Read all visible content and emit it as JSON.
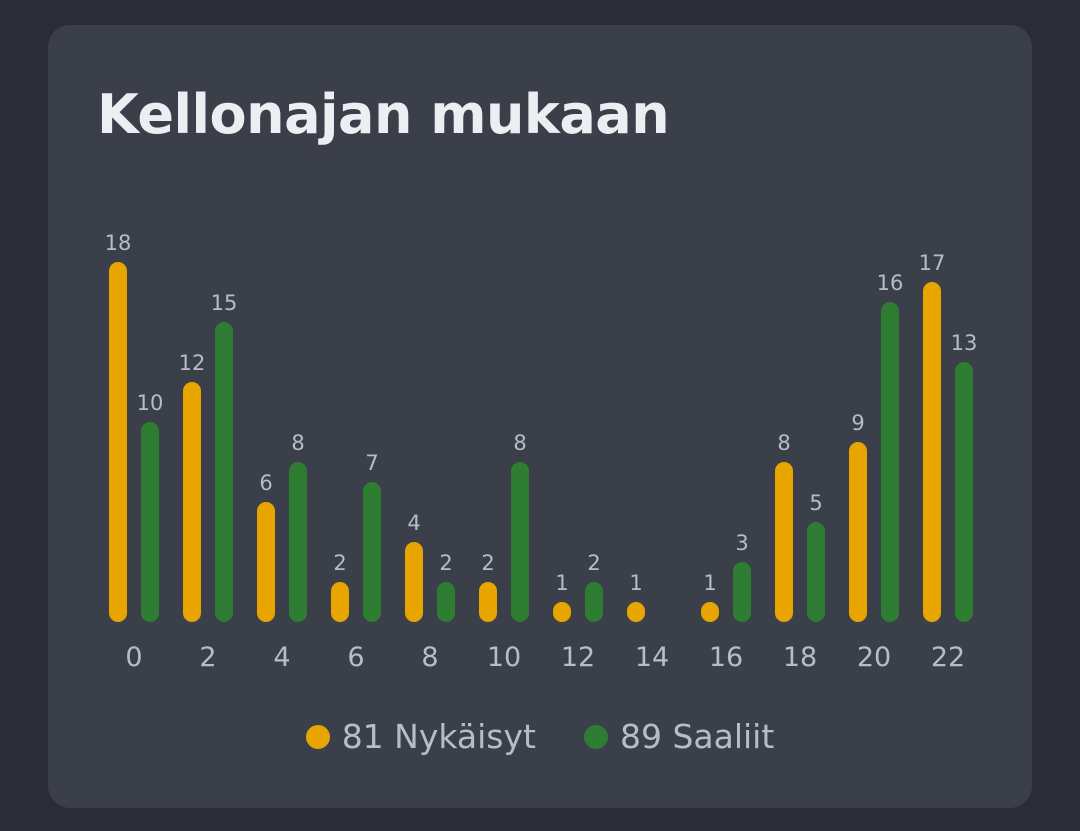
{
  "card": {
    "title": "Kellonajan mukaan"
  },
  "chart_data": {
    "type": "bar",
    "title": "Kellonajan mukaan",
    "categories": [
      "0",
      "2",
      "4",
      "6",
      "8",
      "10",
      "12",
      "14",
      "16",
      "18",
      "20",
      "22"
    ],
    "series": [
      {
        "name": "Nykäisyt",
        "color": "#e8a500",
        "values": [
          18,
          12,
          6,
          2,
          4,
          2,
          1,
          1,
          1,
          8,
          9,
          17
        ]
      },
      {
        "name": "Saaliit",
        "color": "#2e7d32",
        "values": [
          10,
          15,
          8,
          7,
          2,
          8,
          2,
          0,
          3,
          5,
          16,
          13
        ]
      }
    ],
    "ylim": [
      0,
      18
    ],
    "grid": false,
    "legend_position": "bottom-center"
  },
  "legend": {
    "items": [
      {
        "label": "81 Nykäisyt",
        "color": "#e8a500"
      },
      {
        "label": "89 Saaliit",
        "color": "#2e7d32"
      }
    ]
  }
}
